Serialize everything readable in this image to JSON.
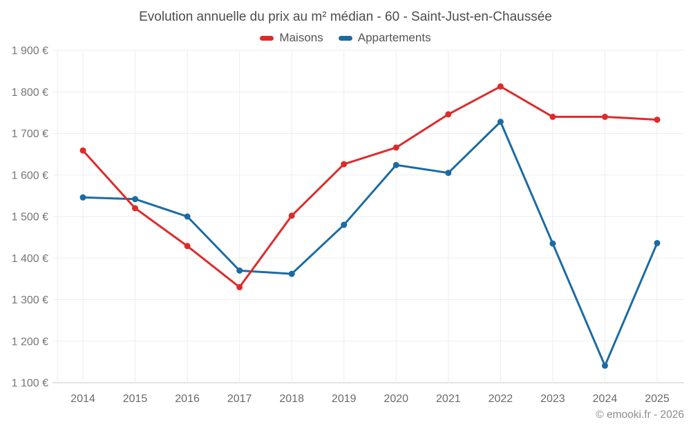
{
  "header": {
    "title": "Evolution annuelle du prix au m² médian - 60 - Saint-Just-en-Chaussée"
  },
  "legend": {
    "items": [
      {
        "label": "Maisons",
        "color": "#dd2b2b"
      },
      {
        "label": "Appartements",
        "color": "#1b6ba3"
      }
    ]
  },
  "chart_data": {
    "type": "line",
    "title": "Evolution annuelle du prix au m² médian - 60 - Saint-Just-en-Chaussée",
    "xlabel": "",
    "ylabel": "",
    "categories": [
      "2014",
      "2015",
      "2016",
      "2017",
      "2018",
      "2019",
      "2020",
      "2021",
      "2022",
      "2023",
      "2024",
      "2025"
    ],
    "series": [
      {
        "name": "Maisons",
        "color": "#dd2b2b",
        "values": [
          1659,
          1520,
          1429,
          1330,
          1502,
          1626,
          1666,
          1746,
          1813,
          1740,
          1740,
          1733
        ]
      },
      {
        "name": "Appartements",
        "color": "#1b6ba3",
        "values": [
          1546,
          1542,
          1500,
          1370,
          1362,
          1480,
          1624,
          1605,
          1728,
          1435,
          1141,
          1436
        ]
      }
    ],
    "ylim": [
      1100,
      1900
    ],
    "ytick_step": 100,
    "ytick_values": [
      1100,
      1200,
      1300,
      1400,
      1500,
      1600,
      1700,
      1800,
      1900
    ],
    "ytick_labels": [
      "1 100 €",
      "1 200 €",
      "1 300 €",
      "1 400 €",
      "1 500 €",
      "1 600 €",
      "1 700 €",
      "1 800 €",
      "1 900 €"
    ],
    "grid": true,
    "legend_position": "top",
    "colors": {
      "grid": "#ededed",
      "axis_line": "#c9c9c9",
      "ytick_text": "#767676",
      "xtick_text": "#696969",
      "title_text": "#4c4c4c",
      "background": "#ffffff"
    }
  },
  "footer": {
    "copyright": "© emooki.fr - 2026"
  }
}
